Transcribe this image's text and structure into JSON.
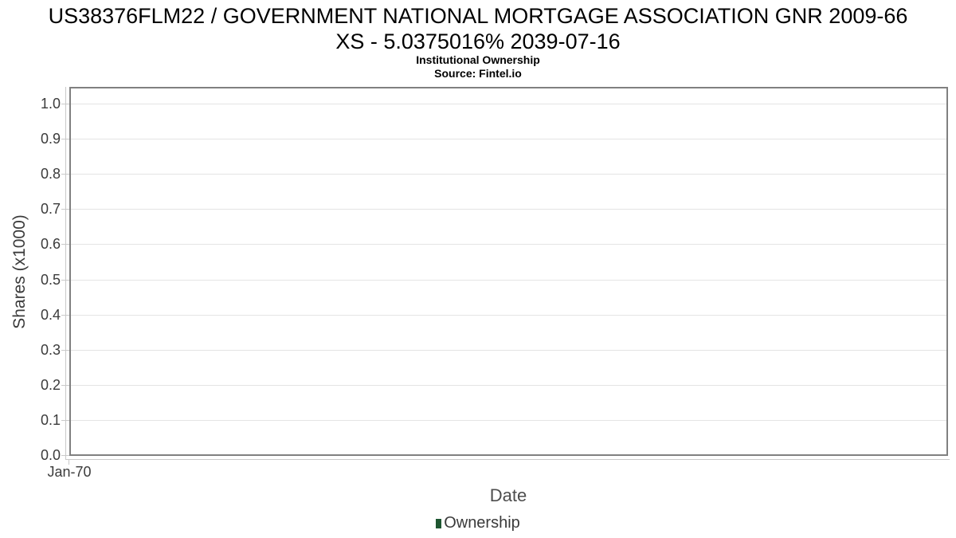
{
  "header": {
    "title": "US38376FLM22 / GOVERNMENT NATIONAL MORTGAGE ASSOCIATION GNR 2009-66\nXS - 5.0375016% 2039-07-16",
    "subtitle": "Institutional Ownership",
    "source": "Source: Fintel.io"
  },
  "chart_data": {
    "type": "line",
    "title": "US38376FLM22 / GOVERNMENT NATIONAL MORTGAGE ASSOCIATION GNR 2009-66 XS - 5.0375016% 2039-07-16",
    "subtitle": "Institutional Ownership",
    "source": "Source: Fintel.io",
    "xlabel": "Date",
    "ylabel": "Shares (x1000)",
    "x_tick_labels": [
      "Jan-70"
    ],
    "y_tick_labels": [
      "0.0",
      "0.1",
      "0.2",
      "0.3",
      "0.4",
      "0.5",
      "0.6",
      "0.7",
      "0.8",
      "0.9",
      "1.0"
    ],
    "ylim": [
      0,
      1.045
    ],
    "grid": true,
    "legend": {
      "position": "bottom",
      "entries": [
        {
          "label": "Ownership",
          "color": "#1e5631"
        }
      ]
    },
    "series": [
      {
        "name": "Ownership",
        "x": [],
        "values": []
      }
    ]
  },
  "colors": {
    "background": "#ffffff",
    "plot_border": "#808080",
    "axis_line": "#c9c9c9",
    "gridline": "#e4e4e4",
    "tick_text": "#3b3b3b",
    "axis_label_text": "#4d4d4d",
    "title_text": "#000000",
    "legend_marker": "#1e5631"
  }
}
